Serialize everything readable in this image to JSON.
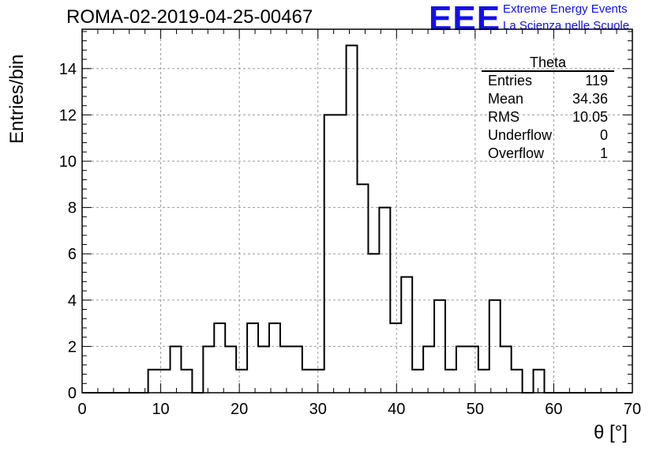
{
  "header": {
    "run_title": "ROMA-02-2019-04-25-00467",
    "logo_text": "EEE",
    "logo_line1": "Extreme Energy Events",
    "logo_line2": "La Scienza nelle Scuole",
    "logo_color": "#1010ee"
  },
  "stats_box": {
    "title": "Theta",
    "rows": [
      {
        "label": "Entries",
        "value": "119"
      },
      {
        "label": "Mean",
        "value": "34.36"
      },
      {
        "label": "RMS",
        "value": "10.05"
      },
      {
        "label": "Underflow",
        "value": "0"
      },
      {
        "label": "Overflow",
        "value": "1"
      }
    ]
  },
  "chart_data": {
    "type": "histogram",
    "title": "ROMA-02-2019-04-25-00467",
    "xlabel": "θ [°]",
    "ylabel": "Entries/bin",
    "xlim": [
      0,
      70
    ],
    "ylim": [
      0,
      15.7
    ],
    "xticks": [
      0,
      10,
      20,
      30,
      40,
      50,
      60,
      70
    ],
    "yticks": [
      0,
      2,
      4,
      6,
      8,
      10,
      12,
      14
    ],
    "grid": true,
    "bin_width": 1.4,
    "bin_edges_start": 0,
    "counts": [
      0,
      0,
      0,
      0,
      0,
      0,
      1,
      1,
      2,
      1,
      0,
      2,
      3,
      2,
      1,
      3,
      2,
      3,
      2,
      2,
      1,
      1,
      12,
      12,
      15,
      9,
      6,
      8,
      3,
      5,
      1,
      2,
      4,
      1,
      2,
      2,
      1,
      4,
      2,
      1,
      0,
      1,
      0,
      0,
      0,
      0,
      0,
      0,
      0,
      0
    ]
  }
}
